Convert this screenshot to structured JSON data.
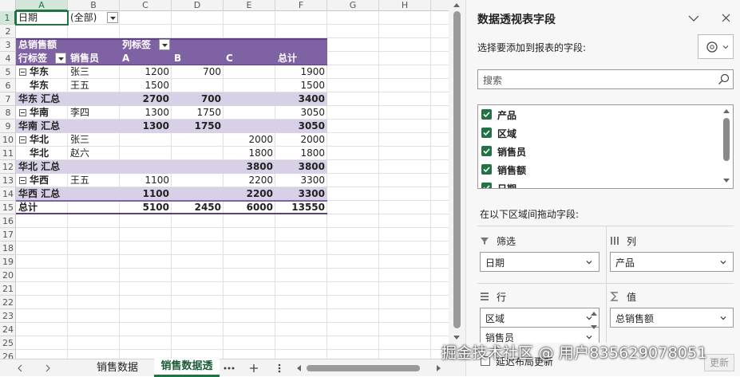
{
  "sheet": {
    "columns": [
      "A",
      "B",
      "C",
      "D",
      "E",
      "F",
      "G",
      "H"
    ],
    "rows": [
      "1",
      "2",
      "3",
      "4",
      "5",
      "6",
      "7",
      "8",
      "9",
      "10",
      "11",
      "12",
      "13",
      "14",
      "15",
      "16",
      "17",
      "18",
      "19",
      "20",
      "21",
      "22",
      "23",
      "24",
      "25",
      "26"
    ],
    "cells": [
      [
        "日期",
        "(全部)",
        null,
        null,
        null,
        null
      ],
      [
        null,
        null,
        null,
        null,
        null,
        null
      ],
      [
        "总销售额",
        null,
        "列标签",
        null,
        null,
        null
      ],
      [
        "行标签",
        "销售员",
        "A",
        "B",
        "C",
        "总计"
      ],
      [
        "华东",
        "张三",
        "1200",
        "700",
        null,
        "1900"
      ],
      [
        "华东",
        "王五",
        "1500",
        null,
        null,
        "1500"
      ],
      [
        "华东 汇总",
        null,
        "2700",
        "700",
        null,
        "3400"
      ],
      [
        "华南",
        "李四",
        "1300",
        "1750",
        null,
        "3050"
      ],
      [
        "华南 汇总",
        null,
        "1300",
        "1750",
        null,
        "3050"
      ],
      [
        "华北",
        "张三",
        null,
        null,
        "2000",
        "2000"
      ],
      [
        "华北",
        "赵六",
        null,
        null,
        "1800",
        "1800"
      ],
      [
        "华北 汇总",
        null,
        null,
        null,
        "3800",
        "3800"
      ],
      [
        "华西",
        "王五",
        "1100",
        null,
        "2200",
        "3300"
      ],
      [
        "华西 汇总",
        null,
        "1100",
        null,
        "2200",
        "3300"
      ],
      [
        "总计",
        null,
        "5100",
        "2450",
        "6000",
        "13550"
      ]
    ]
  },
  "tabs": [
    "销售数据",
    "销售数据透"
  ],
  "panel": {
    "title": "数据透视表字段",
    "subtitle": "选择要添加到报表的字段:",
    "search": "搜索",
    "fields": [
      "产品",
      "区域",
      "销售员",
      "销售额",
      "日期"
    ],
    "drag_label": "在以下区域间拖动字段:",
    "areas": [
      {
        "title": "筛选",
        "items": [
          "日期"
        ]
      },
      {
        "title": "列",
        "items": [
          "产品"
        ]
      },
      {
        "title": "行",
        "items": [
          "区域",
          "销售员"
        ]
      },
      {
        "title": "值",
        "items": [
          "总销售额"
        ]
      }
    ],
    "defer": "延迟布局更新",
    "update": "更新"
  },
  "watermark": "掘金技术社区 @ 用户835629078051"
}
